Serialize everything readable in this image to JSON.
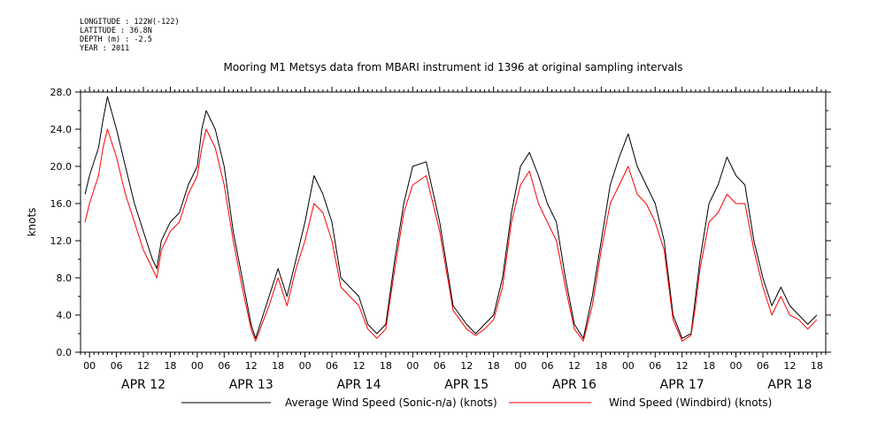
{
  "meta": {
    "longitude": "LONGITUDE : 122W(-122)",
    "latitude": "LATITUDE : 36.8N",
    "depth": "DEPTH (m) : -2.5",
    "year": "YEAR : 2011"
  },
  "chart_data": {
    "type": "line",
    "title": "Mooring M1 Metsys data from MBARI instrument id 1396 at original sampling intervals",
    "ylabel": "knots",
    "xlabel": "",
    "ylim": [
      0,
      28
    ],
    "yticks": [
      0,
      4,
      8,
      12,
      16,
      20,
      24,
      28
    ],
    "ytick_labels": [
      "0.0",
      "4.0",
      "8.0",
      "12.0",
      "16.0",
      "20.0",
      "24.0",
      "28.0"
    ],
    "xlim_hours": [
      -2,
      164
    ],
    "hour_ticks": [
      "00",
      "06",
      "12",
      "18"
    ],
    "day_labels": [
      "APR 12",
      "APR 13",
      "APR 14",
      "APR 15",
      "APR 16",
      "APR 17",
      "APR 18"
    ],
    "grid": false,
    "legend": "bottom",
    "series": [
      {
        "name": "Average Wind Speed (Sonic-n/a) (knots)",
        "color": "#000000",
        "x": [
          -1,
          0,
          2,
          3,
          4,
          6,
          8,
          10,
          12,
          14,
          15,
          16,
          18,
          20,
          22,
          24,
          25,
          26,
          28,
          30,
          32,
          34,
          36,
          37,
          38,
          40,
          42,
          44,
          46,
          48,
          50,
          52,
          54,
          56,
          58,
          60,
          62,
          64,
          66,
          68,
          70,
          72,
          75,
          78,
          81,
          84,
          86,
          88,
          90,
          92,
          94,
          96,
          98,
          100,
          102,
          104,
          106,
          108,
          110,
          112,
          114,
          116,
          118,
          120,
          122,
          124,
          126,
          128,
          130,
          132,
          134,
          135,
          136,
          138,
          140,
          142,
          144,
          146,
          148,
          150,
          152,
          154,
          156,
          158,
          160,
          162
        ],
        "y": [
          17,
          19,
          22,
          25,
          27.5,
          24,
          20,
          16,
          13,
          10,
          9,
          12,
          14,
          15,
          18,
          20,
          24,
          26,
          24,
          20,
          13,
          8,
          3,
          1.5,
          3,
          6,
          9,
          6,
          10,
          14,
          19,
          17,
          14,
          8,
          7,
          6,
          3,
          2,
          3,
          10,
          16,
          20,
          20.5,
          14,
          5,
          3,
          2,
          3,
          4,
          8,
          15,
          20,
          21.5,
          19,
          16,
          14,
          8,
          3,
          1.5,
          6,
          12,
          18,
          21,
          23.5,
          20,
          18,
          16,
          12,
          4,
          1.5,
          2,
          6,
          10,
          16,
          18,
          21,
          19,
          18,
          12,
          8,
          5,
          7,
          5,
          4,
          3,
          4
        ]
      },
      {
        "name": "Wind Speed (Windbird) (knots)",
        "color": "#ff0000",
        "x": [
          -1,
          0,
          2,
          3,
          4,
          6,
          8,
          10,
          12,
          14,
          15,
          16,
          18,
          20,
          22,
          24,
          25,
          26,
          28,
          30,
          32,
          34,
          36,
          37,
          38,
          40,
          42,
          44,
          46,
          48,
          50,
          52,
          54,
          56,
          58,
          60,
          62,
          64,
          66,
          68,
          70,
          72,
          75,
          78,
          81,
          84,
          86,
          88,
          90,
          92,
          94,
          96,
          98,
          100,
          102,
          104,
          106,
          108,
          110,
          112,
          114,
          116,
          118,
          120,
          122,
          124,
          126,
          128,
          130,
          132,
          134,
          135,
          136,
          138,
          140,
          142,
          144,
          146,
          148,
          150,
          152,
          154,
          156,
          158,
          160,
          162
        ],
        "y": [
          14,
          16,
          19,
          22,
          24,
          21,
          17,
          14,
          11,
          9,
          8,
          11,
          13,
          14,
          17,
          19,
          22,
          24,
          22,
          18,
          12,
          7,
          2.5,
          1.2,
          2.5,
          5,
          8,
          5,
          9,
          12,
          16,
          15,
          12,
          7,
          6,
          5,
          2.5,
          1.5,
          2.5,
          9,
          15,
          18,
          19,
          13,
          4.5,
          2.5,
          1.8,
          2.5,
          3.5,
          7,
          14,
          18,
          19.5,
          16,
          14,
          12,
          7,
          2.5,
          1.2,
          5,
          11,
          16,
          18,
          20,
          17,
          16,
          14,
          11,
          3.5,
          1.2,
          1.8,
          5,
          9,
          14,
          15,
          17,
          16,
          16,
          11,
          7,
          4,
          6,
          4,
          3.5,
          2.5,
          3.5
        ]
      }
    ]
  }
}
